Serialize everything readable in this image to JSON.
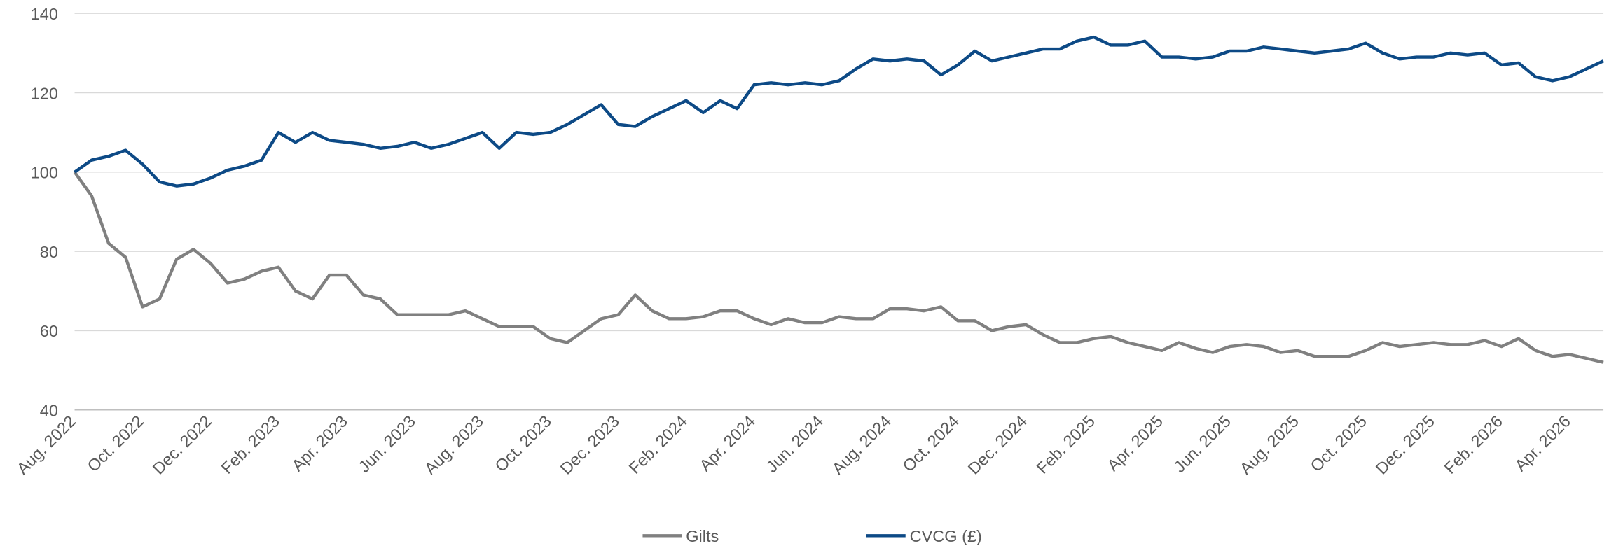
{
  "chart_data": {
    "type": "line",
    "categories": [
      "Aug. 2022",
      null,
      null,
      null,
      "Oct. 2022",
      null,
      null,
      null,
      "Dec. 2022",
      null,
      null,
      null,
      "Feb. 2023",
      null,
      null,
      null,
      "Apr. 2023",
      null,
      null,
      null,
      "Jun. 2023",
      null,
      null,
      null,
      "Aug. 2023",
      null,
      null,
      null,
      "Oct. 2023",
      null,
      null,
      null,
      "Dec. 2023",
      null,
      null,
      null,
      "Feb. 2024",
      null,
      null,
      null,
      "Apr. 2024",
      null,
      null,
      null,
      "Jun. 2024",
      null,
      null,
      null,
      "Aug. 2024",
      null,
      null,
      null,
      "Oct. 2024",
      null,
      null,
      null,
      "Dec. 2024",
      null,
      null,
      null,
      "Feb. 2025",
      null,
      null,
      null,
      "Apr. 2025",
      null,
      null,
      null,
      "Jun. 2025",
      null,
      null,
      null,
      "Aug. 2025",
      null,
      null,
      null,
      "Oct. 2025",
      null,
      null,
      null,
      "Dec. 2025",
      null,
      null,
      null,
      "Feb. 2026",
      null,
      null,
      null,
      "Apr. 2026",
      null,
      null
    ],
    "series": [
      {
        "name": "Gilts",
        "color": "#808080",
        "values": [
          100,
          94,
          82,
          78.5,
          66,
          68,
          78,
          80.5,
          77,
          72,
          73,
          75,
          76,
          70,
          68,
          74,
          74,
          69,
          68,
          64,
          64,
          64,
          64,
          65,
          63,
          61,
          61,
          61,
          58,
          57,
          60,
          63,
          64,
          69,
          65,
          63,
          63,
          63.5,
          65,
          65,
          63,
          61.5,
          63,
          62,
          62,
          63.5,
          63,
          63,
          65.5,
          65.5,
          65,
          66,
          62.5,
          62.5,
          60,
          61,
          61.5,
          59,
          57,
          57,
          58,
          58.5,
          57,
          56,
          55,
          57,
          55.5,
          54.5,
          56,
          56.5,
          56,
          54.5,
          55,
          53.5,
          53.5,
          53.5,
          55,
          57,
          56,
          56.5,
          57,
          56.5,
          56.5,
          57.5,
          56,
          58,
          55,
          53.5,
          54,
          53,
          52
        ]
      },
      {
        "name": "CVCG (£)",
        "color": "#0d4a86",
        "values": [
          100,
          103,
          104,
          105.5,
          102,
          97.5,
          96.5,
          97,
          98.5,
          100.5,
          101.5,
          103,
          110,
          107.5,
          110,
          108,
          107.5,
          107,
          106,
          106.5,
          107.5,
          106,
          107,
          108.5,
          110,
          106,
          110,
          109.5,
          110,
          112,
          114.5,
          117,
          112,
          111.5,
          114,
          116,
          118,
          115,
          118,
          116,
          122,
          122.5,
          122,
          122.5,
          122,
          123,
          126,
          128.5,
          128,
          128.5,
          128,
          124.5,
          127,
          130.5,
          128,
          129,
          130,
          131,
          131,
          133,
          134,
          132,
          132,
          133,
          129,
          129,
          128.5,
          129,
          130.5,
          130.5,
          131.5,
          131,
          130.5,
          130,
          130.5,
          131,
          132.5,
          130,
          128.5,
          129,
          129,
          130,
          129.5,
          130,
          127,
          127.5,
          124,
          123,
          124,
          126,
          128
        ]
      }
    ],
    "ylim": [
      40,
      140
    ],
    "yticks": [
      40,
      60,
      80,
      100,
      120,
      140
    ],
    "grid": true,
    "legend": "bottom"
  }
}
